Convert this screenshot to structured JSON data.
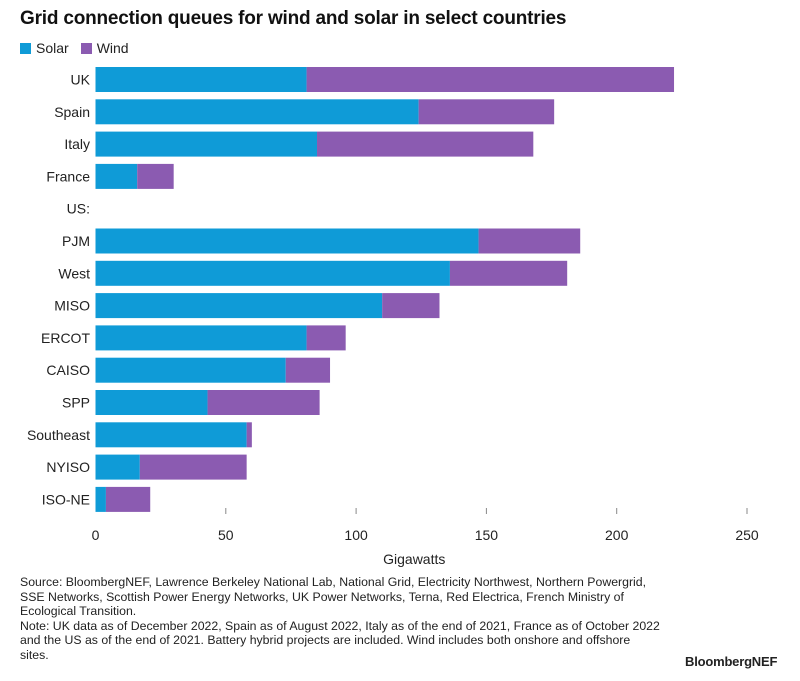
{
  "chart_data": {
    "type": "bar",
    "orientation": "horizontal",
    "stacked": true,
    "title": "Grid connection queues for wind and solar in select countries",
    "xlabel": "Gigawatts",
    "ylabel": "",
    "xlim": [
      0,
      250
    ],
    "xticks": [
      0,
      50,
      100,
      150,
      200,
      250
    ],
    "grid": false,
    "legend_position": "top-left",
    "categories": [
      "UK",
      "Spain",
      "Italy",
      "France",
      "US:",
      "PJM",
      "West",
      "MISO",
      "ERCOT",
      "CAISO",
      "SPP",
      "Southeast",
      "NYISO",
      "ISO-NE"
    ],
    "series": [
      {
        "name": "Solar",
        "color": "#0f9bd7",
        "values": [
          81,
          124,
          85,
          16,
          null,
          147,
          136,
          110,
          81,
          73,
          43,
          58,
          17,
          4
        ]
      },
      {
        "name": "Wind",
        "color": "#8b5bb1",
        "values": [
          141,
          52,
          83,
          14,
          null,
          39,
          45,
          22,
          15,
          17,
          43,
          2,
          41,
          17
        ]
      }
    ]
  },
  "footnote": {
    "source": "Source: BloombergNEF, Lawrence Berkeley National Lab, National Grid, Electricity Northwest, Northern Powergrid, SSE Networks, Scottish Power Energy Networks, UK Power Networks, Terna, Red Electrica, French Ministry of Ecological Transition.",
    "note": "Note: UK data as of December 2022, Spain as of August 2022, Italy as of the end of 2021, France as of October 2022 and the US as of the end of 2021. Battery hybrid projects are included. Wind includes both onshore and offshore sites."
  },
  "brand": "BloombergNEF"
}
